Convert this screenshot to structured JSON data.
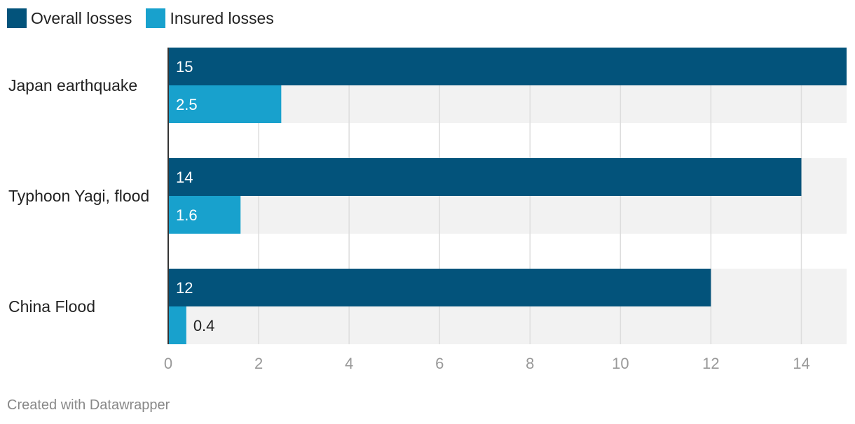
{
  "chart_data": {
    "type": "bar",
    "orientation": "horizontal",
    "categories": [
      "Japan earthquake",
      "Typhoon Yagi, flood",
      "China Flood"
    ],
    "series": [
      {
        "name": "Overall losses",
        "values": [
          15,
          14,
          12
        ],
        "color": "#03537b"
      },
      {
        "name": "Insured losses",
        "values": [
          2.5,
          1.6,
          0.4
        ],
        "color": "#18a1cd"
      }
    ],
    "xlim": [
      0,
      15
    ],
    "xticks": [
      0,
      2,
      4,
      6,
      8,
      10,
      12,
      14
    ],
    "grid": true,
    "legend": "top-left"
  },
  "footer": "Created with Datawrapper"
}
